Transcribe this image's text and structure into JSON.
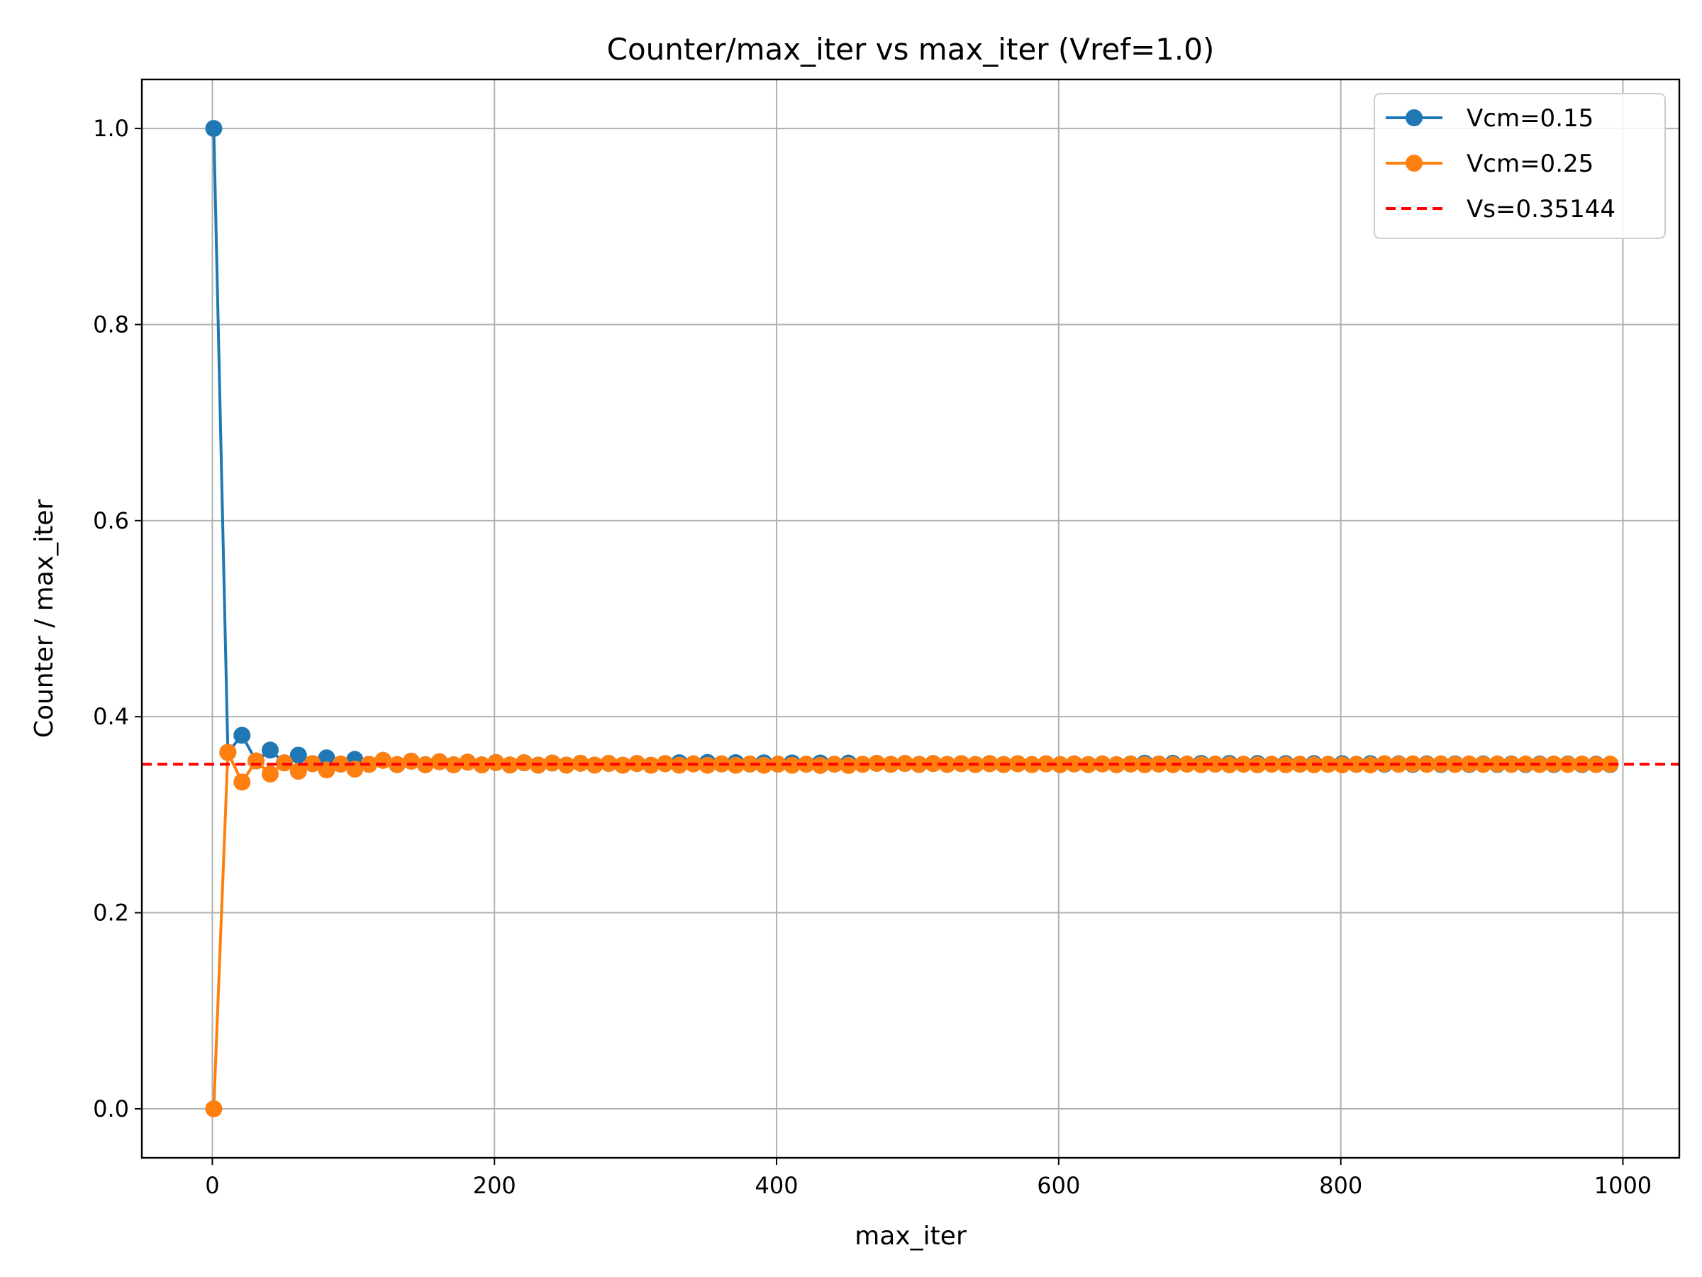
{
  "chart_data": {
    "type": "line",
    "title": "Counter/max_iter vs max_iter (Vref=1.0)",
    "xlabel": "max_iter",
    "ylabel": "Counter / max_iter",
    "xlim": [
      -50,
      1040
    ],
    "ylim": [
      -0.05,
      1.05
    ],
    "xticks": [
      0,
      200,
      400,
      600,
      800,
      1000
    ],
    "yticks": [
      0.0,
      0.2,
      0.4,
      0.6,
      0.8,
      1.0
    ],
    "xtick_labels": [
      "0",
      "200",
      "400",
      "600",
      "800",
      "1000"
    ],
    "ytick_labels": [
      "0.0",
      "0.2",
      "0.4",
      "0.6",
      "0.8",
      "1.0"
    ],
    "grid": true,
    "legend_position": "top-right",
    "x": [
      1,
      11,
      21,
      31,
      41,
      51,
      61,
      71,
      81,
      91,
      101,
      111,
      121,
      131,
      141,
      151,
      161,
      171,
      181,
      191,
      201,
      211,
      221,
      231,
      241,
      251,
      261,
      271,
      281,
      291,
      301,
      311,
      321,
      331,
      341,
      351,
      361,
      371,
      381,
      391,
      401,
      411,
      421,
      431,
      441,
      451,
      461,
      471,
      481,
      491,
      501,
      511,
      521,
      531,
      541,
      551,
      561,
      571,
      581,
      591,
      601,
      611,
      621,
      631,
      641,
      651,
      661,
      671,
      681,
      691,
      701,
      711,
      721,
      731,
      741,
      751,
      761,
      771,
      781,
      791,
      801,
      811,
      821,
      831,
      841,
      851,
      861,
      871,
      881,
      891,
      901,
      911,
      921,
      931,
      941,
      951,
      961,
      971,
      981,
      991
    ],
    "series": [
      {
        "name": "Vcm=0.15",
        "color": "#1f77b4",
        "values": [
          1.0,
          0.3636,
          0.381,
          0.3548,
          0.3659,
          0.3529,
          0.3607,
          0.3521,
          0.358,
          0.3516,
          0.3564,
          0.3514,
          0.3554,
          0.3511,
          0.3546,
          0.351,
          0.354,
          0.3509,
          0.3536,
          0.3508,
          0.3532,
          0.3507,
          0.353,
          0.3506,
          0.3527,
          0.3506,
          0.3525,
          0.3506,
          0.3523,
          0.3505,
          0.3522,
          0.3505,
          0.3521,
          0.353,
          0.3519,
          0.3533,
          0.3518,
          0.3531,
          0.3517,
          0.3529,
          0.3516,
          0.3528,
          0.3515,
          0.3527,
          0.3515,
          0.3526,
          0.3514,
          0.3524,
          0.3514,
          0.3523,
          0.3513,
          0.3522,
          0.3513,
          0.3521,
          0.3512,
          0.3521,
          0.3512,
          0.352,
          0.3511,
          0.3519,
          0.3511,
          0.3518,
          0.3511,
          0.3518,
          0.351,
          0.3517,
          0.3525,
          0.3517,
          0.3524,
          0.3516,
          0.3523,
          0.3516,
          0.3523,
          0.3515,
          0.3522,
          0.3515,
          0.3521,
          0.3515,
          0.3521,
          0.3514,
          0.352,
          0.3514,
          0.352,
          0.3514,
          0.3519,
          0.3513,
          0.3519,
          0.3513,
          0.3518,
          0.3513,
          0.3518,
          0.3513,
          0.3517,
          0.3512,
          0.3517,
          0.3512,
          0.3517,
          0.3512,
          0.3516,
          0.3512
        ]
      },
      {
        "name": "Vcm=0.25",
        "color": "#ff7f0e",
        "values": [
          0.0,
          0.3636,
          0.3333,
          0.3548,
          0.3415,
          0.3529,
          0.3443,
          0.3521,
          0.3457,
          0.3516,
          0.3465,
          0.3514,
          0.3554,
          0.3511,
          0.3546,
          0.351,
          0.354,
          0.3509,
          0.3536,
          0.3508,
          0.3532,
          0.3507,
          0.353,
          0.3506,
          0.3527,
          0.3506,
          0.3525,
          0.3506,
          0.3523,
          0.3505,
          0.3522,
          0.3505,
          0.3521,
          0.3505,
          0.3519,
          0.3504,
          0.3518,
          0.3504,
          0.3517,
          0.3504,
          0.3516,
          0.3504,
          0.3515,
          0.3503,
          0.3515,
          0.3503,
          0.3514,
          0.3524,
          0.3514,
          0.3523,
          0.3513,
          0.3522,
          0.3513,
          0.3521,
          0.3512,
          0.3521,
          0.3512,
          0.352,
          0.3511,
          0.3519,
          0.3511,
          0.3518,
          0.3511,
          0.3518,
          0.351,
          0.3517,
          0.351,
          0.3517,
          0.351,
          0.3516,
          0.351,
          0.3516,
          0.3509,
          0.3515,
          0.3509,
          0.3515,
          0.3509,
          0.3515,
          0.3509,
          0.3514,
          0.3508,
          0.3514,
          0.3508,
          0.352,
          0.3514,
          0.3519,
          0.3513,
          0.3519,
          0.3513,
          0.3518,
          0.3513,
          0.3518,
          0.3513,
          0.3517,
          0.3512,
          0.3517,
          0.3512,
          0.3517,
          0.3512,
          0.3516
        ]
      }
    ],
    "reference_line": {
      "name": "Vs=0.35144",
      "y": 0.35144,
      "color": "#ff0000",
      "style": "dashed"
    },
    "legend": [
      "Vcm=0.15",
      "Vcm=0.25",
      "Vs=0.35144"
    ]
  }
}
